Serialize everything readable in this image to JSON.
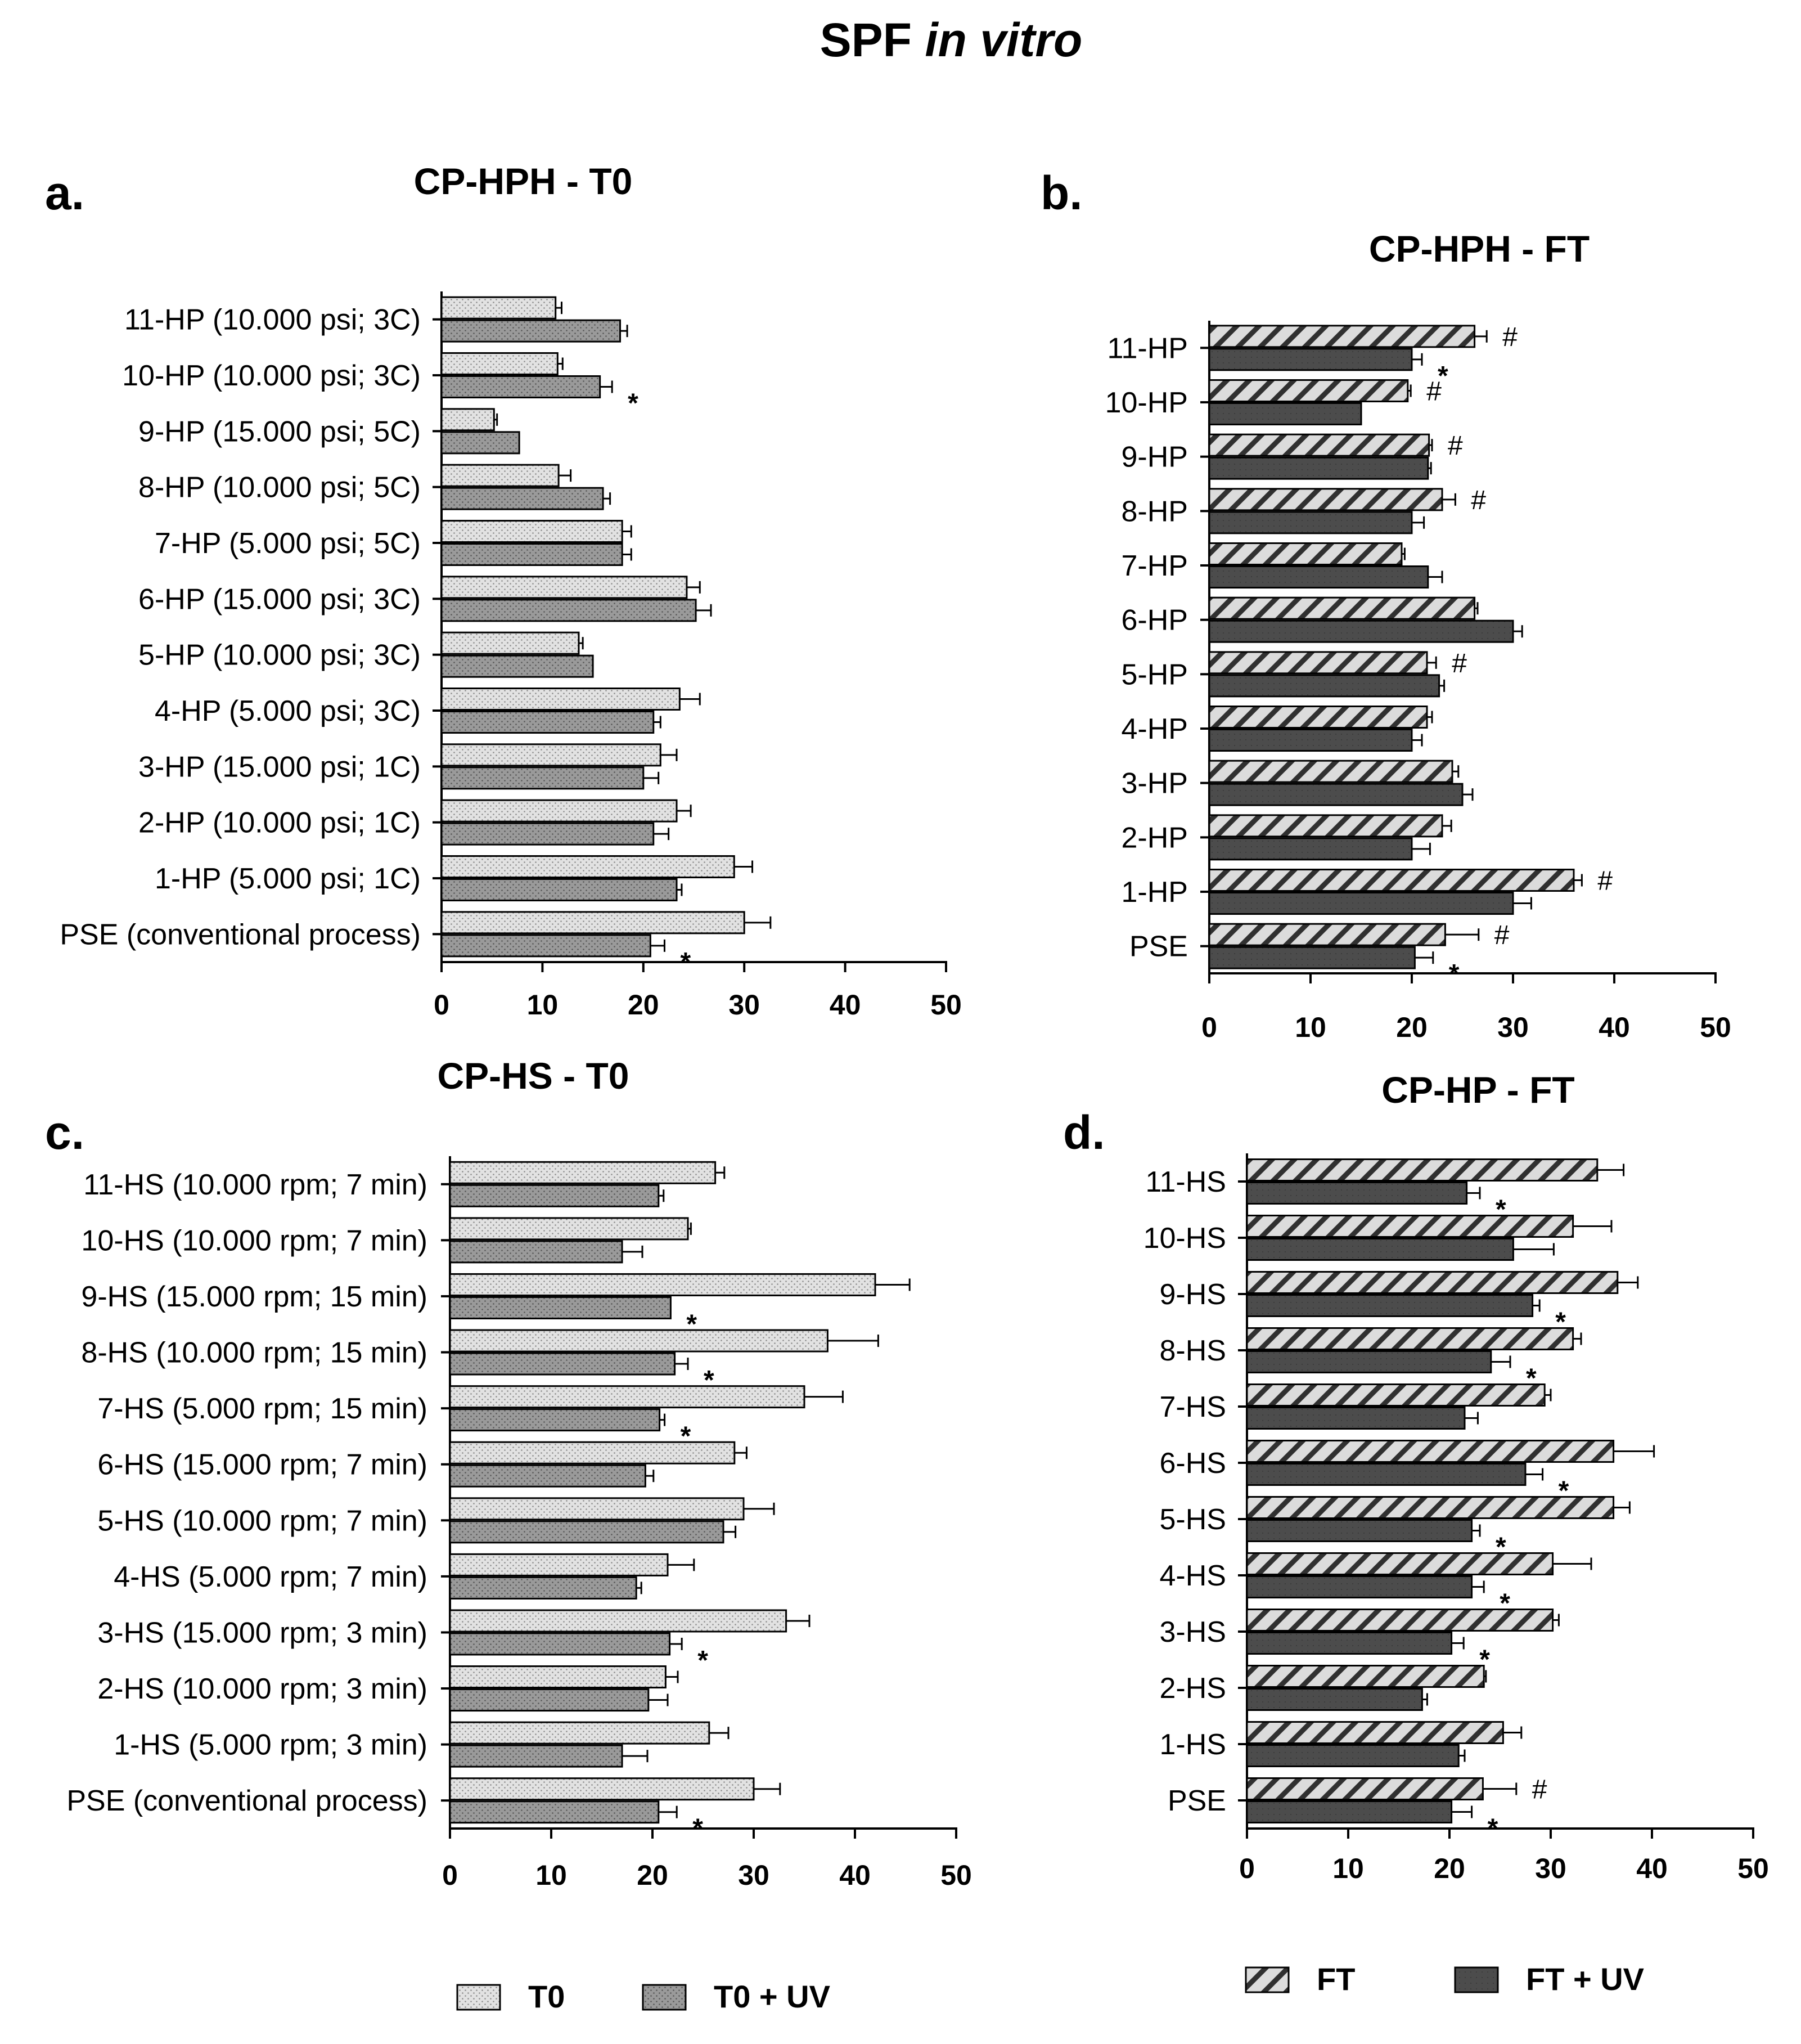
{
  "figure": {
    "title_main": "SPF",
    "title_italic": "in vitro"
  },
  "chart_data": [
    {
      "id": "a",
      "panel_letter": "a.",
      "type": "bar",
      "orientation": "horizontal",
      "title": "CP-HPH - T0",
      "categories": [
        "PSE (conventional process)",
        "1-HP (5.000 psi; 1C)",
        "2-HP (10.000 psi; 1C)",
        "3-HP (15.000 psi; 1C)",
        "4-HP (5.000 psi; 3C)",
        "5-HP (10.000 psi; 3C)",
        "6-HP (15.000 psi; 3C)",
        "7-HP (5.000 psi; 5C)",
        "8-HP (10.000 psi; 5C)",
        "9-HP (15.000 psi; 5C)",
        "10-HP (10.000 psi; 3C)",
        "11-HP (10.000 psi; 3C)"
      ],
      "series": [
        {
          "name": "T0",
          "pattern": "dots-light",
          "values": [
            30,
            29,
            23.3,
            21.7,
            23.6,
            13.6,
            24.3,
            17.9,
            11.6,
            5.2,
            11.5,
            11.3
          ],
          "errors": [
            2.6,
            1.8,
            1.4,
            1.6,
            2.0,
            0.4,
            1.3,
            0.9,
            1.2,
            0.3,
            0.5,
            0.6
          ]
        },
        {
          "name": "T0 + UV",
          "pattern": "dots-dark",
          "values": [
            20.7,
            23.3,
            21.0,
            20.0,
            21.0,
            15.0,
            25.2,
            17.9,
            16.0,
            7.7,
            15.7,
            17.7
          ],
          "errors": [
            1.4,
            0.5,
            1.5,
            1.5,
            0.7,
            0,
            1.5,
            0.9,
            0.7,
            0,
            1.2,
            0.7
          ]
        }
      ],
      "markers_uv": [
        "*",
        "",
        "",
        "",
        "",
        "",
        "",
        "",
        "",
        "",
        "*",
        ""
      ],
      "markers_base": [
        "",
        "",
        "",
        "",
        "",
        "",
        "",
        "",
        "",
        "",
        "",
        ""
      ],
      "xlim": [
        0,
        50
      ],
      "xticks": [
        0,
        10,
        20,
        30,
        40,
        50
      ]
    },
    {
      "id": "b",
      "panel_letter": "b.",
      "type": "bar",
      "orientation": "horizontal",
      "title": "CP-HPH - FT",
      "categories": [
        "PSE",
        "1-HP",
        "2-HP",
        "3-HP",
        "4-HP",
        "5-HP",
        "6-HP",
        "7-HP",
        "8-HP",
        "9-HP",
        "10-HP",
        "11-HP"
      ],
      "series": [
        {
          "name": "FT",
          "pattern": "hatch-light",
          "values": [
            23.3,
            36.0,
            23.0,
            24.0,
            21.5,
            21.5,
            26.2,
            19.0,
            23.0,
            21.7,
            19.6,
            26.2
          ],
          "errors": [
            3.3,
            0.8,
            0.9,
            0.6,
            0.5,
            0.9,
            0.3,
            0.3,
            1.3,
            0.3,
            0.3,
            1.2
          ]
        },
        {
          "name": "FT + UV",
          "pattern": "solid-dark",
          "values": [
            20.3,
            30.0,
            20.0,
            25.0,
            20.0,
            22.7,
            30.0,
            21.6,
            20.0,
            21.6,
            15.0,
            20.0
          ],
          "errors": [
            1.8,
            1.8,
            1.8,
            1.0,
            1.0,
            0.5,
            0.9,
            1.4,
            1.2,
            0.3,
            0,
            1.0
          ]
        }
      ],
      "markers_uv": [
        "*",
        "",
        "",
        "",
        "",
        "",
        "",
        "",
        "",
        "",
        "",
        "*"
      ],
      "markers_base": [
        "#",
        "#",
        "",
        "",
        "",
        "#",
        "",
        "",
        "#",
        "#",
        "#",
        "#"
      ],
      "xlim": [
        0,
        50
      ],
      "xticks": [
        0,
        10,
        20,
        30,
        40,
        50
      ]
    },
    {
      "id": "c",
      "panel_letter": "c.",
      "type": "bar",
      "orientation": "horizontal",
      "title": "CP-HS - T0",
      "categories": [
        "PSE (conventional process)",
        "1-HS (5.000 rpm; 3 min)",
        "2-HS (10.000 rpm; 3 min)",
        "3-HS (15.000 rpm; 3 min)",
        "4-HS (5.000 rpm; 7 min)",
        "5-HS (10.000 rpm; 7 min)",
        "6-HS (15.000 rpm; 7 min)",
        "7-HS (5.000 rpm; 15 min)",
        "8-HS (10.000 rpm; 15 min)",
        "9-HS (15.000 rpm; 15 min)",
        "10-HS (10.000 rpm; 7 min)",
        "11-HS (10.000 rpm; 7 min)"
      ],
      "series": [
        {
          "name": "T0",
          "pattern": "dots-light",
          "values": [
            30.0,
            25.6,
            21.3,
            33.2,
            21.5,
            29.0,
            28.1,
            35.0,
            37.3,
            42.0,
            23.5,
            26.2
          ],
          "errors": [
            2.6,
            1.9,
            1.2,
            2.3,
            2.6,
            3.0,
            1.2,
            3.8,
            5.0,
            3.4,
            0.3,
            0.9
          ]
        },
        {
          "name": "T0 + UV",
          "pattern": "dots-dark",
          "values": [
            20.6,
            17.0,
            19.6,
            21.7,
            18.4,
            27.0,
            19.3,
            20.7,
            22.2,
            21.8,
            17.0,
            20.6
          ],
          "errors": [
            1.8,
            2.5,
            1.9,
            1.2,
            0.5,
            1.2,
            0.8,
            0.5,
            1.3,
            0,
            2.0,
            0.5
          ]
        }
      ],
      "markers_uv": [
        "*",
        "",
        "",
        "*",
        "",
        "",
        "",
        "*",
        "*",
        "*",
        "",
        ""
      ],
      "markers_base": [
        "",
        "",
        "",
        "",
        "",
        "",
        "",
        "",
        "",
        "",
        "",
        ""
      ],
      "xlim": [
        0,
        50
      ],
      "xticks": [
        0,
        10,
        20,
        30,
        40,
        50
      ]
    },
    {
      "id": "d",
      "panel_letter": "d.",
      "type": "bar",
      "orientation": "horizontal",
      "title": "CP-HP - FT",
      "categories": [
        "PSE",
        "1-HS",
        "2-HS",
        "3-HS",
        "4-HS",
        "5-HS",
        "6-HS",
        "7-HS",
        "8-HS",
        "9-HS",
        "10-HS",
        "11-HS"
      ],
      "series": [
        {
          "name": "FT",
          "pattern": "hatch-light",
          "values": [
            23.3,
            25.3,
            23.4,
            30.2,
            30.2,
            36.2,
            36.2,
            29.4,
            32.2,
            36.6,
            32.2,
            34.6
          ],
          "errors": [
            3.3,
            1.8,
            0.2,
            0.6,
            3.8,
            1.6,
            4.0,
            0.6,
            0.8,
            2.0,
            3.8,
            2.6
          ]
        },
        {
          "name": "FT + UV",
          "pattern": "solid-dark",
          "values": [
            20.2,
            20.9,
            17.3,
            20.2,
            22.2,
            22.2,
            27.5,
            21.5,
            24.1,
            28.2,
            26.3,
            21.7
          ],
          "errors": [
            2.0,
            0.6,
            0.5,
            1.2,
            1.2,
            0.8,
            1.7,
            1.3,
            1.9,
            0.7,
            4.0,
            1.3
          ]
        }
      ],
      "markers_uv": [
        "*",
        "",
        "",
        "*",
        "*",
        "*",
        "*",
        "",
        "*",
        "*",
        "",
        "*"
      ],
      "markers_base": [
        "#",
        "",
        "",
        "",
        "",
        "",
        "",
        "",
        "",
        "",
        "",
        ""
      ],
      "xlim": [
        0,
        50
      ],
      "xticks": [
        0,
        10,
        20,
        30,
        40,
        50
      ]
    }
  ],
  "legends": {
    "left": [
      {
        "label": "T0",
        "pattern": "dots-light"
      },
      {
        "label": "T0 + UV",
        "pattern": "dots-dark"
      }
    ],
    "right": [
      {
        "label": "FT",
        "pattern": "hatch-light"
      },
      {
        "label": "FT + UV",
        "pattern": "solid-dark"
      }
    ]
  }
}
